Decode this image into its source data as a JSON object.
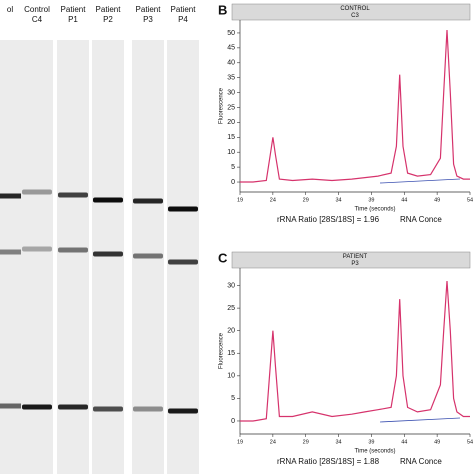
{
  "gel": {
    "lanes": [
      {
        "label": "ol"
      },
      {
        "label": "Control",
        "sublabel": "C4"
      },
      {
        "label": "Patient",
        "sublabel": "P1"
      },
      {
        "label": "Patient",
        "sublabel": "P2"
      },
      {
        "label": "Patient",
        "sublabel": "P3"
      },
      {
        "label": "Patient",
        "sublabel": "P4"
      }
    ]
  },
  "chart_data": [
    {
      "type": "line",
      "panel_label": "B",
      "header": "CONTROL",
      "subheader": "C3",
      "xlabel": "Time (seconds)",
      "ylabel": "Fluorescence",
      "x": [
        19,
        21,
        23,
        23.6,
        24,
        24.4,
        25,
        27,
        30,
        33,
        36,
        38,
        40,
        42,
        42.8,
        43.3,
        43.8,
        44.5,
        46,
        48,
        49.5,
        50,
        50.5,
        51,
        51.5,
        52,
        53,
        54
      ],
      "series": [
        {
          "color": "#d6336c",
          "values": [
            0,
            0,
            0.5,
            9,
            15,
            9,
            1,
            0.5,
            1,
            0.5,
            1,
            1.5,
            2,
            3,
            12,
            36,
            12,
            3,
            2,
            2.5,
            8,
            30,
            51,
            30,
            6,
            2,
            1,
            1
          ]
        }
      ],
      "xlim": [
        19,
        54
      ],
      "xticks": [
        19,
        24,
        29,
        34,
        39,
        44,
        49,
        54
      ],
      "ylim": [
        -2,
        53
      ],
      "yticks": [
        0,
        5,
        10,
        15,
        20,
        25,
        30,
        35,
        40,
        45,
        50
      ],
      "footer": [
        "rRNA Ratio [28S/18S] = 1.96",
        "RNA Conce"
      ]
    },
    {
      "type": "line",
      "panel_label": "C",
      "header": "PATIENT",
      "subheader": "P3",
      "xlabel": "Time (seconds)",
      "ylabel": "Fluorescence",
      "x": [
        19,
        21,
        23,
        23.6,
        24,
        24.4,
        25,
        27,
        30,
        33,
        36,
        38,
        40,
        42,
        42.8,
        43.3,
        43.8,
        44.5,
        46,
        48,
        49.5,
        50,
        50.5,
        51,
        51.5,
        52,
        53,
        54
      ],
      "series": [
        {
          "color": "#d6336c",
          "values": [
            0,
            0,
            0.5,
            12,
            20,
            12,
            1,
            1,
            2,
            1,
            1.5,
            2,
            2.5,
            3,
            10,
            27,
            10,
            3,
            2,
            2.5,
            8,
            20,
            31,
            20,
            5,
            2,
            1,
            1
          ]
        }
      ],
      "xlim": [
        19,
        54
      ],
      "xticks": [
        19,
        24,
        29,
        34,
        39,
        44,
        49,
        54
      ],
      "ylim": [
        -2,
        33
      ],
      "yticks": [
        0,
        5,
        10,
        15,
        20,
        25,
        30
      ],
      "footer": [
        "rRNA Ratio [28S/18S] = 1.88",
        "RNA Conce"
      ]
    }
  ]
}
